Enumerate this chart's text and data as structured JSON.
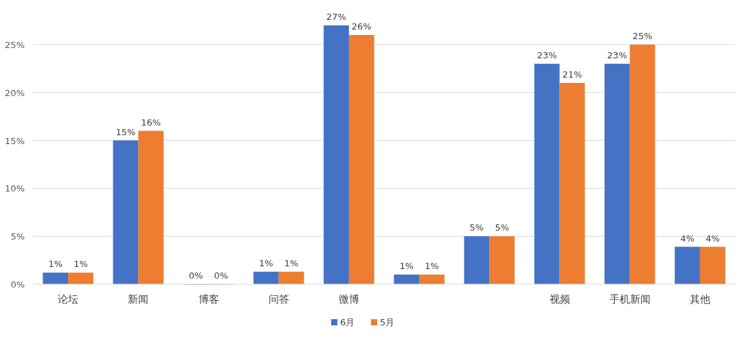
{
  "chart_data": {
    "type": "bar",
    "categories": [
      "论坛",
      "新闻",
      "博客",
      "问答",
      "微博",
      null,
      null,
      "视频",
      "手机新闻",
      "其他"
    ],
    "series": [
      {
        "name": "6月",
        "color": "#4472c4",
        "values": [
          1.2,
          15,
          0,
          1.3,
          27,
          1.0,
          5,
          23,
          23,
          3.9
        ],
        "value_labels": [
          "1%",
          "15%",
          "0%",
          "1%",
          "27%",
          "1%",
          "5%",
          "23%",
          "23%",
          "4%"
        ]
      },
      {
        "name": "5月",
        "color": "#ed7d31",
        "values": [
          1.2,
          16,
          0,
          1.3,
          26,
          1.0,
          5,
          21,
          25,
          3.9
        ],
        "value_labels": [
          "1%",
          "16%",
          "0%",
          "1%",
          "26%",
          "1%",
          "5%",
          "21%",
          "25%",
          "4%"
        ]
      }
    ],
    "yticks": [
      {
        "value": 0,
        "label": "0%"
      },
      {
        "value": 5,
        "label": "5%"
      },
      {
        "value": 10,
        "label": "10%"
      },
      {
        "value": 15,
        "label": "15%"
      },
      {
        "value": 20,
        "label": "20%"
      },
      {
        "value": 25,
        "label": "25%"
      }
    ],
    "ylim": [
      0,
      27
    ],
    "grid": "y",
    "legend": "bottom"
  }
}
